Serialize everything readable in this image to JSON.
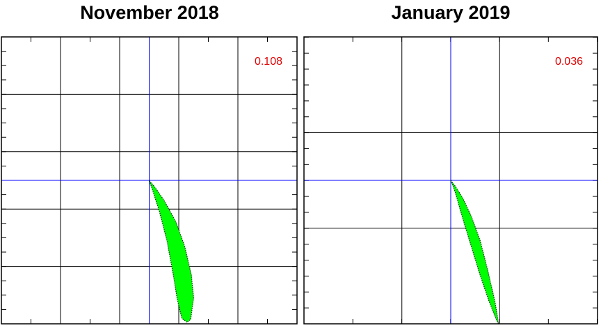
{
  "chart_data": [
    {
      "type": "area",
      "title": "November 2018",
      "value_label": "0.108",
      "value_label_color": "#e00000",
      "fill_color": "#00ff00",
      "edge_color": "#003300",
      "axis_line_color": "#0000ff",
      "grid_color": "#000000",
      "grid": true,
      "xlim": [
        -1,
        1
      ],
      "ylim": [
        -1,
        1
      ],
      "x_major_ticks": [
        -0.6,
        -0.2,
        0.2,
        0.6
      ],
      "y_major_ticks": [
        -0.6,
        -0.2,
        0.2,
        0.6
      ],
      "x_minor_step": 0.2,
      "y_minor_step": 0.1,
      "x": [
        0.0,
        0.04,
        0.1,
        0.18,
        0.24,
        0.285,
        0.3,
        0.28,
        0.255,
        0.22,
        0.19,
        0.16,
        0.12,
        0.07,
        0.02,
        0.0
      ],
      "y": [
        0.0,
        -0.05,
        -0.14,
        -0.29,
        -0.46,
        -0.66,
        -0.82,
        -0.97,
        -0.99,
        -0.96,
        -0.83,
        -0.64,
        -0.42,
        -0.22,
        -0.06,
        0.0
      ]
    },
    {
      "type": "area",
      "title": "January 2019",
      "value_label": "0.036",
      "value_label_color": "#e00000",
      "fill_color": "#00ff00",
      "edge_color": "#003300",
      "axis_line_color": "#0000ff",
      "grid_color": "#000000",
      "grid": true,
      "xlim": [
        -1,
        1
      ],
      "ylim": [
        -1,
        1
      ],
      "x_major_ticks": [
        -0.333,
        0.333
      ],
      "y_major_ticks": [
        -0.333,
        0.333
      ],
      "x_minor_step": 0.333,
      "y_minor_step": 0.111,
      "x": [
        0.0,
        0.03,
        0.08,
        0.14,
        0.2,
        0.25,
        0.3,
        0.32,
        0.325,
        0.31,
        0.26,
        0.2,
        0.14,
        0.08,
        0.03,
        0.0
      ],
      "y": [
        0.0,
        -0.04,
        -0.12,
        -0.25,
        -0.42,
        -0.62,
        -0.84,
        -0.96,
        -1.0,
        -0.97,
        -0.84,
        -0.66,
        -0.46,
        -0.26,
        -0.08,
        0.0
      ]
    }
  ]
}
